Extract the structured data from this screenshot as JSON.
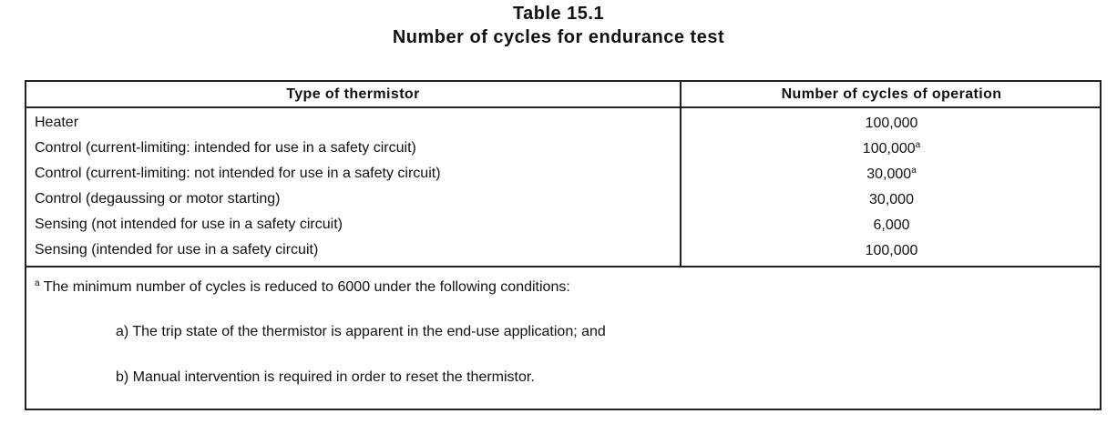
{
  "title": {
    "line1": "Table 15.1",
    "line2": "Number of cycles for endurance test"
  },
  "columns": [
    "Type of thermistor",
    "Number of cycles of operation"
  ],
  "rows": [
    {
      "type": "Heater",
      "cycles": "100,000",
      "note": ""
    },
    {
      "type": "Control (current-limiting: intended for use in a safety circuit)",
      "cycles": "100,000",
      "note": "a"
    },
    {
      "type": "Control (current-limiting: not intended for use in a safety circuit)",
      "cycles": "30,000",
      "note": "a"
    },
    {
      "type": "Control (degaussing or motor starting)",
      "cycles": "30,000",
      "note": ""
    },
    {
      "type": "Sensing (not intended for use in a safety circuit)",
      "cycles": "6,000",
      "note": ""
    },
    {
      "type": "Sensing (intended for use in a safety circuit)",
      "cycles": "100,000",
      "note": ""
    }
  ],
  "footnote": {
    "marker": "a",
    "text": "The minimum number of cycles is reduced to 6000 under the following conditions:",
    "items": [
      "a)  The trip state of the thermistor is apparent in the end-use application; and",
      "b)  Manual intervention is required in order to reset the thermistor."
    ]
  }
}
